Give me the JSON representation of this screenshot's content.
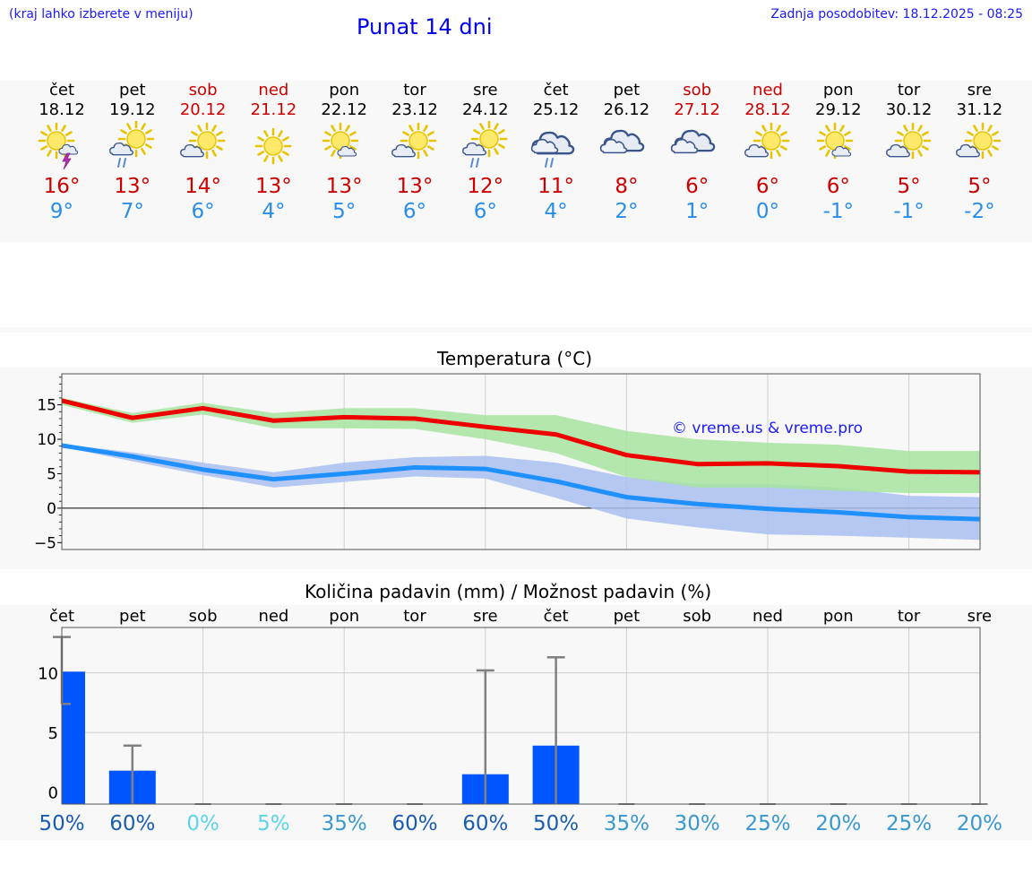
{
  "header": {
    "location_hint": "(kraj lahko izberete v meniju)",
    "title": "Punat 14 dni",
    "updated": "Zadnja posodobitev: 18.12.2025 - 08:25"
  },
  "days": [
    {
      "name": "čet",
      "date": "18.12",
      "weekend": false,
      "icon": "sun-cloud-thunder-icon",
      "tmax": "16°",
      "tmin": "9°"
    },
    {
      "name": "pet",
      "date": "19.12",
      "weekend": false,
      "icon": "sun-cloud-rain-icon",
      "tmax": "13°",
      "tmin": "7°"
    },
    {
      "name": "sob",
      "date": "20.12",
      "weekend": true,
      "icon": "sun-cloud-icon",
      "tmax": "14°",
      "tmin": "6°"
    },
    {
      "name": "ned",
      "date": "21.12",
      "weekend": true,
      "icon": "sun-icon",
      "tmax": "13°",
      "tmin": "4°"
    },
    {
      "name": "pon",
      "date": "22.12",
      "weekend": false,
      "icon": "sun-small-cloud-icon",
      "tmax": "13°",
      "tmin": "5°"
    },
    {
      "name": "tor",
      "date": "23.12",
      "weekend": false,
      "icon": "sun-cloud-icon",
      "tmax": "13°",
      "tmin": "6°"
    },
    {
      "name": "sre",
      "date": "24.12",
      "weekend": false,
      "icon": "sun-cloud-rain-icon",
      "tmax": "12°",
      "tmin": "6°"
    },
    {
      "name": "čet",
      "date": "25.12",
      "weekend": false,
      "icon": "cloud-rain-icon",
      "tmax": "11°",
      "tmin": "4°"
    },
    {
      "name": "pet",
      "date": "26.12",
      "weekend": false,
      "icon": "cloud-icon",
      "tmax": "8°",
      "tmin": "2°"
    },
    {
      "name": "sob",
      "date": "27.12",
      "weekend": true,
      "icon": "cloud-icon",
      "tmax": "6°",
      "tmin": "1°"
    },
    {
      "name": "ned",
      "date": "28.12",
      "weekend": true,
      "icon": "sun-cloud-icon",
      "tmax": "6°",
      "tmin": "0°"
    },
    {
      "name": "pon",
      "date": "29.12",
      "weekend": false,
      "icon": "sun-small-cloud-icon",
      "tmax": "6°",
      "tmin": "-1°"
    },
    {
      "name": "tor",
      "date": "30.12",
      "weekend": false,
      "icon": "sun-cloud-icon",
      "tmax": "5°",
      "tmin": "-1°"
    },
    {
      "name": "sre",
      "date": "31.12",
      "weekend": false,
      "icon": "sun-cloud-icon",
      "tmax": "5°",
      "tmin": "-2°"
    }
  ],
  "colors": {
    "tmax": "#ee0000",
    "tmin": "#1e90ff",
    "tmax_band": "#a8e4a0",
    "tmin_band": "#a8c0f0",
    "bar": "#0055ff",
    "weekend": "#cc0000",
    "error": "#808080"
  },
  "chart_data": [
    {
      "type": "line",
      "title": "Temperatura (°C)",
      "watermark": "© vreme.us & vreme.pro",
      "ylim": [
        -6,
        19.5
      ],
      "yticks": [
        15,
        10,
        5,
        0,
        -5
      ],
      "ytick_labels": [
        "15",
        "10",
        "5",
        "0",
        "−5"
      ],
      "x": [
        0,
        1,
        2,
        3,
        4,
        5,
        6,
        7,
        8,
        9,
        10,
        11,
        12,
        13
      ],
      "series": [
        {
          "name": "max",
          "values": [
            15.6,
            13.1,
            14.5,
            12.7,
            13.2,
            13.0,
            11.8,
            10.7,
            7.7,
            6.4,
            6.5,
            6.1,
            5.3,
            5.2
          ],
          "band_low": [
            15.0,
            12.4,
            13.6,
            11.6,
            11.6,
            11.5,
            10.0,
            8.0,
            4.5,
            3.0,
            3.0,
            2.5,
            2.2,
            2.2
          ],
          "band_high": [
            16.0,
            13.8,
            15.3,
            13.8,
            14.5,
            14.5,
            13.5,
            13.5,
            11.2,
            10.0,
            9.5,
            9.2,
            8.3,
            8.3
          ]
        },
        {
          "name": "min",
          "values": [
            9.1,
            7.5,
            5.6,
            4.2,
            5.0,
            5.9,
            5.7,
            3.9,
            1.6,
            0.6,
            -0.1,
            -0.6,
            -1.3,
            -1.6
          ],
          "band_low": [
            8.9,
            6.8,
            4.8,
            3.0,
            3.8,
            4.6,
            4.3,
            1.5,
            -1.5,
            -2.8,
            -3.8,
            -4.0,
            -4.3,
            -4.6
          ],
          "band_high": [
            9.3,
            8.1,
            6.6,
            5.2,
            6.6,
            7.4,
            7.6,
            6.6,
            4.5,
            3.5,
            3.5,
            3.0,
            1.8,
            1.6
          ]
        }
      ]
    },
    {
      "type": "bar",
      "title": "Količina padavin (mm) / Možnost padavin (%)",
      "categories": [
        "čet",
        "pet",
        "sob",
        "ned",
        "pon",
        "tor",
        "sre",
        "čet",
        "pet",
        "sob",
        "ned",
        "pon",
        "tor",
        "sre"
      ],
      "values": [
        10.1,
        1.8,
        0,
        0,
        0,
        0,
        1.5,
        3.9,
        0,
        0,
        0,
        0,
        0,
        0
      ],
      "error_low": [
        7.4,
        0,
        0,
        0,
        0,
        0,
        0,
        0,
        0,
        0,
        0,
        0,
        0,
        0
      ],
      "error_high": [
        13.0,
        3.9,
        0,
        0,
        0,
        0,
        10.2,
        11.3,
        0,
        0,
        0,
        0,
        0,
        0
      ],
      "probabilities": [
        "50%",
        "60%",
        "0%",
        "5%",
        "35%",
        "60%",
        "60%",
        "50%",
        "35%",
        "30%",
        "25%",
        "20%",
        "25%",
        "20%"
      ],
      "prob_values": [
        50,
        60,
        0,
        5,
        35,
        60,
        60,
        50,
        35,
        30,
        25,
        20,
        25,
        20
      ],
      "ylim": [
        -1,
        13.8
      ],
      "yticks": [
        10,
        5,
        0
      ],
      "ytick_labels": [
        "10",
        "5",
        "0"
      ]
    }
  ]
}
